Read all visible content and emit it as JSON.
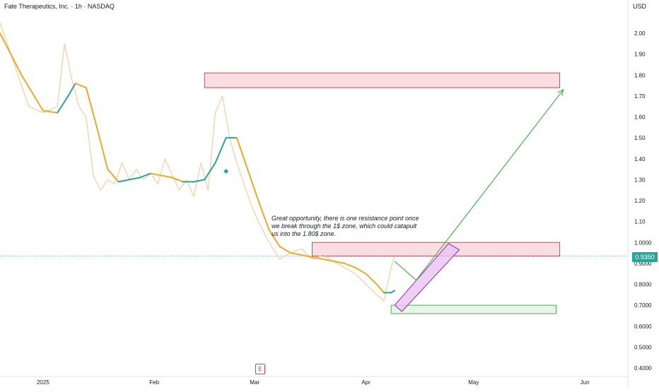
{
  "header": {
    "title": "Fate Therapeutics, Inc. · 1h · NASDAQ",
    "currency": "USD"
  },
  "price_badge": "0.9350",
  "annotation_text": "Great opportunity, there is one resistance point once we break through the 1$ zone, which could catapult us into the 1.80$ zone.",
  "earnings_marker": "E",
  "colors": {
    "price_line": "#f7c48b",
    "price_line_up": "#6fd0c2",
    "ma_down": "#f5a623",
    "ma_up": "#26a69a",
    "resistance_fill": "#f8d7dc",
    "resistance_border": "#f23645",
    "support_fill": "#e3f5e4",
    "support_border": "#4caf50",
    "channel_fill": "#e8c4f0",
    "channel_border": "#9c27b0",
    "projection": "#4caf50",
    "badge": "#26a69a"
  },
  "chart_data": {
    "type": "line",
    "title": "Fate Therapeutics, Inc. · 1h · NASDAQ",
    "y_unit": "USD",
    "ylim": [
      0.4,
      2.1
    ],
    "y_ticks": [
      "2.00",
      "1.90",
      "1.80",
      "1.70",
      "1.60",
      "1.50",
      "1.40",
      "1.30",
      "1.20",
      "1.10",
      "1.0000",
      "0.9000",
      "0.8000",
      "0.7000",
      "0.6000",
      "0.5000",
      "0.4000"
    ],
    "x_ticks": [
      "2025",
      "Feb",
      "Mar",
      "Apr",
      "May",
      "Jun"
    ],
    "x_tick_dates": [
      "2025-01-01",
      "2025-02-01",
      "2025-03-01",
      "2025-04-01",
      "2025-05-01",
      "2025-06-01"
    ],
    "xlim": [
      "2024-12-20",
      "2025-06-13"
    ],
    "last_price": 0.935,
    "series": [
      {
        "role": "price",
        "x": [
          "2024-12-20",
          "2024-12-24",
          "2024-12-28",
          "2025-01-01",
          "2025-01-05",
          "2025-01-07",
          "2025-01-09",
          "2025-01-11",
          "2025-01-13",
          "2025-01-15",
          "2025-01-17",
          "2025-01-19",
          "2025-01-21",
          "2025-01-23",
          "2025-01-25",
          "2025-01-27",
          "2025-01-29",
          "2025-01-31",
          "2025-02-02",
          "2025-02-04",
          "2025-02-06",
          "2025-02-08",
          "2025-02-10",
          "2025-02-12",
          "2025-02-14",
          "2025-02-16",
          "2025-02-18",
          "2025-02-20",
          "2025-02-22",
          "2025-02-24",
          "2025-02-26",
          "2025-02-28",
          "2025-03-02",
          "2025-03-05",
          "2025-03-08",
          "2025-03-11",
          "2025-03-14",
          "2025-03-17",
          "2025-03-20",
          "2025-03-23",
          "2025-03-26",
          "2025-03-29",
          "2025-04-01",
          "2025-04-04",
          "2025-04-06",
          "2025-04-07",
          "2025-04-08",
          "2025-04-09"
        ],
        "y": [
          2.05,
          1.85,
          1.65,
          1.62,
          1.65,
          1.95,
          1.78,
          1.65,
          1.6,
          1.32,
          1.25,
          1.3,
          1.28,
          1.38,
          1.3,
          1.35,
          1.3,
          1.33,
          1.28,
          1.4,
          1.32,
          1.25,
          1.3,
          1.22,
          1.38,
          1.25,
          1.62,
          1.7,
          1.5,
          1.38,
          1.28,
          1.18,
          1.1,
          1.0,
          0.92,
          0.95,
          0.97,
          0.92,
          0.94,
          0.91,
          0.88,
          0.85,
          0.8,
          0.75,
          0.72,
          0.8,
          0.88,
          0.935
        ]
      },
      {
        "role": "moving-average",
        "x": [
          "2024-12-20",
          "2024-12-26",
          "2025-01-01",
          "2025-01-05",
          "2025-01-08",
          "2025-01-10",
          "2025-01-13",
          "2025-01-16",
          "2025-01-19",
          "2025-01-22",
          "2025-01-25",
          "2025-01-28",
          "2025-01-31",
          "2025-02-03",
          "2025-02-06",
          "2025-02-09",
          "2025-02-12",
          "2025-02-15",
          "2025-02-18",
          "2025-02-21",
          "2025-02-24",
          "2025-02-27",
          "2025-03-02",
          "2025-03-05",
          "2025-03-08",
          "2025-03-11",
          "2025-03-14",
          "2025-03-17",
          "2025-03-20",
          "2025-03-23",
          "2025-03-26",
          "2025-03-29",
          "2025-04-01",
          "2025-04-04",
          "2025-04-06",
          "2025-04-08",
          "2025-04-09"
        ],
        "y": [
          2.0,
          1.8,
          1.63,
          1.62,
          1.7,
          1.76,
          1.74,
          1.55,
          1.35,
          1.29,
          1.3,
          1.31,
          1.33,
          1.32,
          1.31,
          1.29,
          1.29,
          1.3,
          1.38,
          1.5,
          1.5,
          1.35,
          1.2,
          1.06,
          0.98,
          0.95,
          0.94,
          0.93,
          0.92,
          0.91,
          0.9,
          0.88,
          0.85,
          0.8,
          0.76,
          0.76,
          0.77
        ]
      }
    ],
    "zones": [
      {
        "kind": "resistance",
        "start": "2025-02-15",
        "end": "2025-05-25",
        "low": 1.74,
        "high": 1.81
      },
      {
        "kind": "resistance",
        "start": "2025-03-17",
        "end": "2025-05-25",
        "low": 0.935,
        "high": 1.0
      },
      {
        "kind": "support",
        "start": "2025-04-08",
        "end": "2025-05-24",
        "low": 0.66,
        "high": 0.7
      }
    ],
    "channel": {
      "points": [
        [
          "2025-04-09",
          0.7
        ],
        [
          "2025-04-24",
          0.995
        ],
        [
          "2025-04-27",
          0.965
        ],
        [
          "2025-04-11",
          0.67
        ]
      ]
    },
    "projection": {
      "points": [
        [
          "2025-04-09",
          0.91
        ],
        [
          "2025-04-15",
          0.82
        ],
        [
          "2025-05-26",
          1.73
        ]
      ]
    },
    "signal_marker": {
      "date": "2025-02-21",
      "y": 1.34
    }
  }
}
